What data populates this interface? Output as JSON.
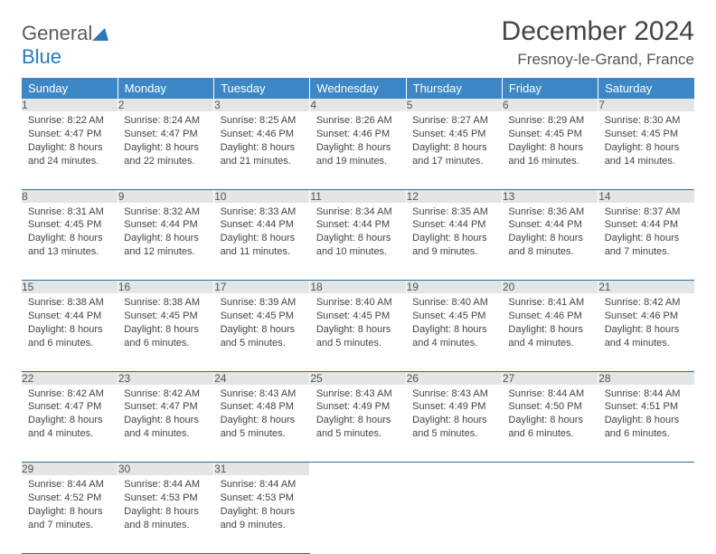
{
  "logo": {
    "part1": "General",
    "part2": "Blue"
  },
  "title": "December 2024",
  "location": "Fresnoy-le-Grand, France",
  "colors": {
    "header_bg": "#3d87c7",
    "header_text": "#ffffff",
    "daynum_bg": "#e3e5e6",
    "border": "#2f6d9e",
    "logo_gray": "#5a5a5a",
    "logo_blue": "#2a7ab8"
  },
  "typography": {
    "title_fontsize": 30,
    "location_fontsize": 17,
    "header_fontsize": 13,
    "daynum_fontsize": 12,
    "cell_fontsize": 11
  },
  "day_headers": [
    "Sunday",
    "Monday",
    "Tuesday",
    "Wednesday",
    "Thursday",
    "Friday",
    "Saturday"
  ],
  "weeks": [
    [
      {
        "n": "1",
        "sunrise": "Sunrise: 8:22 AM",
        "sunset": "Sunset: 4:47 PM",
        "day": "Daylight: 8 hours and 24 minutes."
      },
      {
        "n": "2",
        "sunrise": "Sunrise: 8:24 AM",
        "sunset": "Sunset: 4:47 PM",
        "day": "Daylight: 8 hours and 22 minutes."
      },
      {
        "n": "3",
        "sunrise": "Sunrise: 8:25 AM",
        "sunset": "Sunset: 4:46 PM",
        "day": "Daylight: 8 hours and 21 minutes."
      },
      {
        "n": "4",
        "sunrise": "Sunrise: 8:26 AM",
        "sunset": "Sunset: 4:46 PM",
        "day": "Daylight: 8 hours and 19 minutes."
      },
      {
        "n": "5",
        "sunrise": "Sunrise: 8:27 AM",
        "sunset": "Sunset: 4:45 PM",
        "day": "Daylight: 8 hours and 17 minutes."
      },
      {
        "n": "6",
        "sunrise": "Sunrise: 8:29 AM",
        "sunset": "Sunset: 4:45 PM",
        "day": "Daylight: 8 hours and 16 minutes."
      },
      {
        "n": "7",
        "sunrise": "Sunrise: 8:30 AM",
        "sunset": "Sunset: 4:45 PM",
        "day": "Daylight: 8 hours and 14 minutes."
      }
    ],
    [
      {
        "n": "8",
        "sunrise": "Sunrise: 8:31 AM",
        "sunset": "Sunset: 4:45 PM",
        "day": "Daylight: 8 hours and 13 minutes."
      },
      {
        "n": "9",
        "sunrise": "Sunrise: 8:32 AM",
        "sunset": "Sunset: 4:44 PM",
        "day": "Daylight: 8 hours and 12 minutes."
      },
      {
        "n": "10",
        "sunrise": "Sunrise: 8:33 AM",
        "sunset": "Sunset: 4:44 PM",
        "day": "Daylight: 8 hours and 11 minutes."
      },
      {
        "n": "11",
        "sunrise": "Sunrise: 8:34 AM",
        "sunset": "Sunset: 4:44 PM",
        "day": "Daylight: 8 hours and 10 minutes."
      },
      {
        "n": "12",
        "sunrise": "Sunrise: 8:35 AM",
        "sunset": "Sunset: 4:44 PM",
        "day": "Daylight: 8 hours and 9 minutes."
      },
      {
        "n": "13",
        "sunrise": "Sunrise: 8:36 AM",
        "sunset": "Sunset: 4:44 PM",
        "day": "Daylight: 8 hours and 8 minutes."
      },
      {
        "n": "14",
        "sunrise": "Sunrise: 8:37 AM",
        "sunset": "Sunset: 4:44 PM",
        "day": "Daylight: 8 hours and 7 minutes."
      }
    ],
    [
      {
        "n": "15",
        "sunrise": "Sunrise: 8:38 AM",
        "sunset": "Sunset: 4:44 PM",
        "day": "Daylight: 8 hours and 6 minutes."
      },
      {
        "n": "16",
        "sunrise": "Sunrise: 8:38 AM",
        "sunset": "Sunset: 4:45 PM",
        "day": "Daylight: 8 hours and 6 minutes."
      },
      {
        "n": "17",
        "sunrise": "Sunrise: 8:39 AM",
        "sunset": "Sunset: 4:45 PM",
        "day": "Daylight: 8 hours and 5 minutes."
      },
      {
        "n": "18",
        "sunrise": "Sunrise: 8:40 AM",
        "sunset": "Sunset: 4:45 PM",
        "day": "Daylight: 8 hours and 5 minutes."
      },
      {
        "n": "19",
        "sunrise": "Sunrise: 8:40 AM",
        "sunset": "Sunset: 4:45 PM",
        "day": "Daylight: 8 hours and 4 minutes."
      },
      {
        "n": "20",
        "sunrise": "Sunrise: 8:41 AM",
        "sunset": "Sunset: 4:46 PM",
        "day": "Daylight: 8 hours and 4 minutes."
      },
      {
        "n": "21",
        "sunrise": "Sunrise: 8:42 AM",
        "sunset": "Sunset: 4:46 PM",
        "day": "Daylight: 8 hours and 4 minutes."
      }
    ],
    [
      {
        "n": "22",
        "sunrise": "Sunrise: 8:42 AM",
        "sunset": "Sunset: 4:47 PM",
        "day": "Daylight: 8 hours and 4 minutes."
      },
      {
        "n": "23",
        "sunrise": "Sunrise: 8:42 AM",
        "sunset": "Sunset: 4:47 PM",
        "day": "Daylight: 8 hours and 4 minutes."
      },
      {
        "n": "24",
        "sunrise": "Sunrise: 8:43 AM",
        "sunset": "Sunset: 4:48 PM",
        "day": "Daylight: 8 hours and 5 minutes."
      },
      {
        "n": "25",
        "sunrise": "Sunrise: 8:43 AM",
        "sunset": "Sunset: 4:49 PM",
        "day": "Daylight: 8 hours and 5 minutes."
      },
      {
        "n": "26",
        "sunrise": "Sunrise: 8:43 AM",
        "sunset": "Sunset: 4:49 PM",
        "day": "Daylight: 8 hours and 5 minutes."
      },
      {
        "n": "27",
        "sunrise": "Sunrise: 8:44 AM",
        "sunset": "Sunset: 4:50 PM",
        "day": "Daylight: 8 hours and 6 minutes."
      },
      {
        "n": "28",
        "sunrise": "Sunrise: 8:44 AM",
        "sunset": "Sunset: 4:51 PM",
        "day": "Daylight: 8 hours and 6 minutes."
      }
    ],
    [
      {
        "n": "29",
        "sunrise": "Sunrise: 8:44 AM",
        "sunset": "Sunset: 4:52 PM",
        "day": "Daylight: 8 hours and 7 minutes."
      },
      {
        "n": "30",
        "sunrise": "Sunrise: 8:44 AM",
        "sunset": "Sunset: 4:53 PM",
        "day": "Daylight: 8 hours and 8 minutes."
      },
      {
        "n": "31",
        "sunrise": "Sunrise: 8:44 AM",
        "sunset": "Sunset: 4:53 PM",
        "day": "Daylight: 8 hours and 9 minutes."
      },
      null,
      null,
      null,
      null
    ]
  ]
}
